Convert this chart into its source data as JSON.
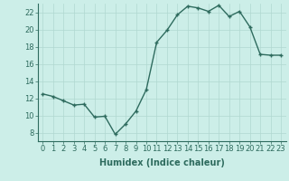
{
  "x": [
    0,
    1,
    2,
    3,
    4,
    5,
    6,
    7,
    8,
    9,
    10,
    11,
    12,
    13,
    14,
    15,
    16,
    17,
    18,
    19,
    20,
    21,
    22,
    23
  ],
  "y": [
    12.5,
    12.2,
    11.7,
    11.2,
    11.3,
    9.8,
    9.9,
    7.8,
    9.0,
    10.5,
    13.0,
    18.5,
    19.9,
    21.7,
    22.7,
    22.5,
    22.1,
    22.8,
    21.5,
    22.1,
    20.3,
    17.1,
    17.0,
    17.0
  ],
  "line_color": "#2e6b5e",
  "marker": "+",
  "marker_size": 3,
  "bg_color": "#cceee8",
  "grid_color": "#b0d8d0",
  "xlabel": "Humidex (Indice chaleur)",
  "xlim": [
    -0.5,
    23.5
  ],
  "ylim": [
    7,
    23
  ],
  "yticks": [
    8,
    10,
    12,
    14,
    16,
    18,
    20,
    22
  ],
  "xticks": [
    0,
    1,
    2,
    3,
    4,
    5,
    6,
    7,
    8,
    9,
    10,
    11,
    12,
    13,
    14,
    15,
    16,
    17,
    18,
    19,
    20,
    21,
    22,
    23
  ],
  "xlabel_fontsize": 7,
  "tick_fontsize": 6,
  "line_width": 1.0
}
